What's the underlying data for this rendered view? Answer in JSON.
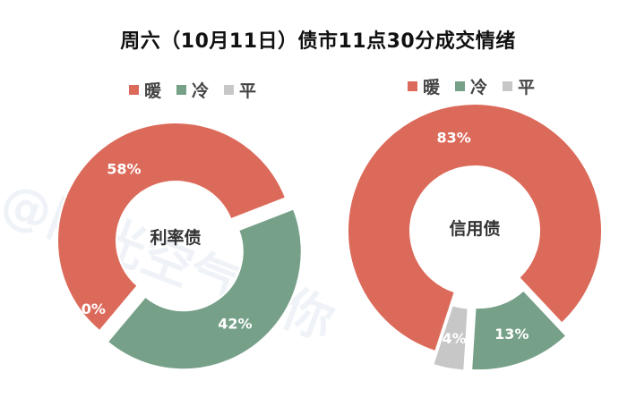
{
  "title": "周六（10月11日）债市11点30分成交情绪",
  "watermark": "@阳光空气与你",
  "colors": {
    "warm": "#dc6a5a",
    "cold": "#76a088",
    "flat": "#c7c7c7"
  },
  "chart_data": [
    {
      "type": "pie",
      "center_label": "利率债",
      "legend": [
        "暖",
        "冷",
        "平"
      ],
      "slices": [
        {
          "name": "暖",
          "value": 58,
          "label": "58%"
        },
        {
          "name": "冷",
          "value": 42,
          "label": "42%"
        },
        {
          "name": "平",
          "value": 0,
          "label": "0%"
        }
      ]
    },
    {
      "type": "pie",
      "center_label": "信用债",
      "legend": [
        "暖",
        "冷",
        "平"
      ],
      "slices": [
        {
          "name": "暖",
          "value": 83,
          "label": "83%"
        },
        {
          "name": "冷",
          "value": 13,
          "label": "13%"
        },
        {
          "name": "平",
          "value": 4,
          "label": "4%"
        }
      ]
    }
  ]
}
